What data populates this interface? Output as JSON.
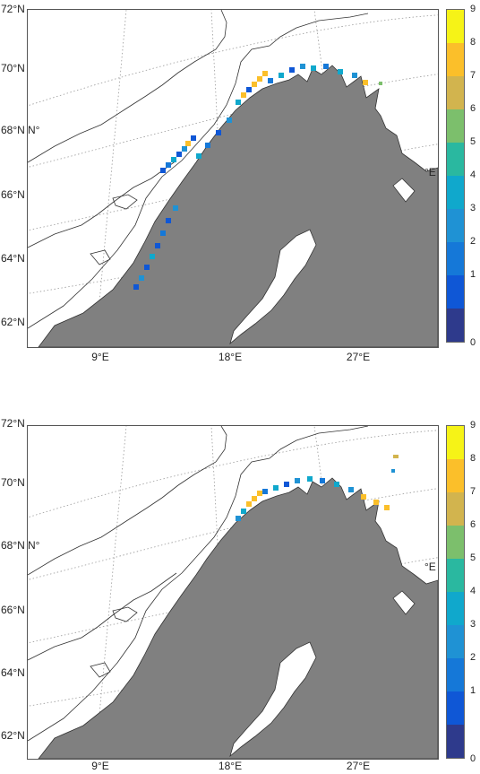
{
  "colors": {
    "land": "#808080",
    "water": "#ffffff",
    "coast": "#333333",
    "graticule": "#9a9a9a",
    "scale": [
      "#2e3a8c",
      "#0f57d6",
      "#1578d8",
      "#1f92d4",
      "#10a8cc",
      "#2ab8a0",
      "#7cbf6c",
      "#d2b44e",
      "#fbbf2a",
      "#f6f317"
    ]
  },
  "panels": [
    {
      "lat_labels": [
        "72°N",
        "70°N",
        "68°N",
        "66°N",
        "64°N",
        "62°N"
      ],
      "lon_labels": [
        "9°E",
        "18°E",
        "27°E"
      ],
      "edge_labels": [
        "N°",
        "°E"
      ],
      "colorbar_ticks": [
        "9",
        "8",
        "7",
        "6",
        "5",
        "4",
        "3",
        "2",
        "1",
        "0"
      ]
    },
    {
      "lat_labels": [
        "72°N",
        "70°N",
        "68°N",
        "66°N",
        "64°N",
        "62°N"
      ],
      "lon_labels": [
        "9°E",
        "18°E",
        "27°E"
      ],
      "edge_labels": [
        "N°",
        "°E"
      ],
      "colorbar_ticks": [
        "9",
        "8",
        "7",
        "6",
        "5",
        "4",
        "3",
        "2",
        "1",
        "0"
      ]
    }
  ]
}
